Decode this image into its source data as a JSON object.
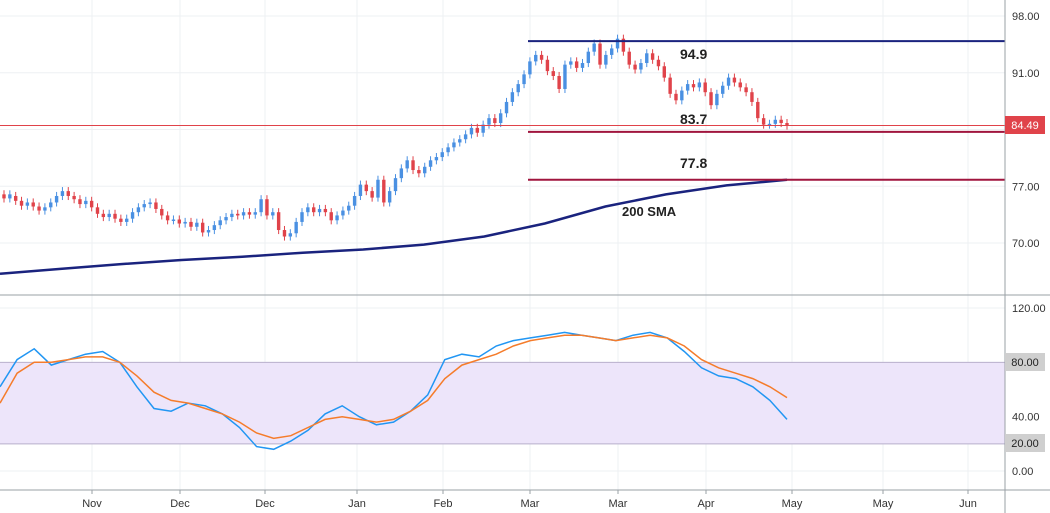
{
  "chart_data": [
    {
      "type": "candlestick",
      "ylim": [
        66,
        98.5
      ],
      "y_ticks": [
        "98.00",
        "91.00",
        "84.00",
        "77.00",
        "70.00"
      ],
      "last_price": "84.49",
      "colors": {
        "up": "#4a90e2",
        "down": "#e0434a",
        "sma": "#1a237e",
        "level_top": "#1a237e",
        "level_mid": "#a0153e",
        "price_line": "#e0434a"
      },
      "levels": [
        {
          "value": 94.9,
          "label": "94.9"
        },
        {
          "value": 83.7,
          "label": "83.7"
        },
        {
          "value": 77.8,
          "label": "77.8"
        }
      ],
      "sma_label": "200 SMA",
      "sma": [
        66.2,
        66.8,
        67.4,
        67.9,
        68.3,
        68.8,
        69.2,
        69.8,
        70.8,
        72.4,
        74.5,
        76.0,
        77.1,
        77.8
      ],
      "candles": [
        [
          76.0,
          75.5
        ],
        [
          75.5,
          76.0
        ],
        [
          75.8,
          75.2
        ],
        [
          75.2,
          74.6
        ],
        [
          74.6,
          75.0
        ],
        [
          75.0,
          74.5
        ],
        [
          74.5,
          74.0
        ],
        [
          74.0,
          74.4
        ],
        [
          74.4,
          75.0
        ],
        [
          75.0,
          75.8
        ],
        [
          75.8,
          76.4
        ],
        [
          76.4,
          75.8
        ],
        [
          75.8,
          75.4
        ],
        [
          75.4,
          74.8
        ],
        [
          74.8,
          75.2
        ],
        [
          75.2,
          74.4
        ],
        [
          74.4,
          73.6
        ],
        [
          73.6,
          73.2
        ],
        [
          73.2,
          73.6
        ],
        [
          73.6,
          73.0
        ],
        [
          73.0,
          72.6
        ],
        [
          72.6,
          73.0
        ],
        [
          73.0,
          73.8
        ],
        [
          73.8,
          74.4
        ],
        [
          74.4,
          74.8
        ],
        [
          74.8,
          75.0
        ],
        [
          75.0,
          74.2
        ],
        [
          74.2,
          73.4
        ],
        [
          73.4,
          72.8
        ],
        [
          72.8,
          72.9
        ],
        [
          72.9,
          72.4
        ],
        [
          72.4,
          72.6
        ],
        [
          72.6,
          72.0
        ],
        [
          72.0,
          72.5
        ],
        [
          72.5,
          71.3
        ],
        [
          71.3,
          71.6
        ],
        [
          71.6,
          72.2
        ],
        [
          72.2,
          72.8
        ],
        [
          72.8,
          73.2
        ],
        [
          73.2,
          73.6
        ],
        [
          73.6,
          73.4
        ],
        [
          73.4,
          73.8
        ],
        [
          73.8,
          73.5
        ],
        [
          73.5,
          73.8
        ],
        [
          73.8,
          75.4
        ],
        [
          75.4,
          73.4
        ],
        [
          73.4,
          73.8
        ],
        [
          73.8,
          71.6
        ],
        [
          71.6,
          70.8
        ],
        [
          70.8,
          71.2
        ],
        [
          71.2,
          72.6
        ],
        [
          72.6,
          73.8
        ],
        [
          73.8,
          74.4
        ],
        [
          74.4,
          73.8
        ],
        [
          73.8,
          74.2
        ],
        [
          74.2,
          73.8
        ],
        [
          73.8,
          72.8
        ],
        [
          72.8,
          73.4
        ],
        [
          73.4,
          74.0
        ],
        [
          74.0,
          74.6
        ],
        [
          74.6,
          75.8
        ],
        [
          75.8,
          77.2
        ],
        [
          77.2,
          76.4
        ],
        [
          76.4,
          75.6
        ],
        [
          75.6,
          77.8
        ],
        [
          77.8,
          75.0
        ],
        [
          75.0,
          76.4
        ],
        [
          76.4,
          78.0
        ],
        [
          78.0,
          79.2
        ],
        [
          79.2,
          80.2
        ],
        [
          80.2,
          79.0
        ],
        [
          79.0,
          78.6
        ],
        [
          78.6,
          79.4
        ],
        [
          79.4,
          80.2
        ],
        [
          80.2,
          80.6
        ],
        [
          80.6,
          81.2
        ],
        [
          81.2,
          81.8
        ],
        [
          81.8,
          82.4
        ],
        [
          82.4,
          82.8
        ],
        [
          82.8,
          83.4
        ],
        [
          83.4,
          84.2
        ],
        [
          84.2,
          83.6
        ],
        [
          83.6,
          84.6
        ],
        [
          84.6,
          85.4
        ],
        [
          85.4,
          84.8
        ],
        [
          84.8,
          86.0
        ],
        [
          86.0,
          87.4
        ],
        [
          87.4,
          88.6
        ],
        [
          88.6,
          89.6
        ],
        [
          89.6,
          90.8
        ],
        [
          90.8,
          92.4
        ],
        [
          92.4,
          93.2
        ],
        [
          93.2,
          92.6
        ],
        [
          92.6,
          91.2
        ],
        [
          91.2,
          90.6
        ],
        [
          90.6,
          89.0
        ],
        [
          89.0,
          92.0
        ],
        [
          92.0,
          92.4
        ],
        [
          92.4,
          91.6
        ],
        [
          91.6,
          92.2
        ],
        [
          92.2,
          93.6
        ],
        [
          93.6,
          94.6
        ],
        [
          94.6,
          92.0
        ],
        [
          92.0,
          93.2
        ],
        [
          93.2,
          94.0
        ],
        [
          94.0,
          95.2
        ],
        [
          95.2,
          93.6
        ],
        [
          93.6,
          92.0
        ],
        [
          92.0,
          91.4
        ],
        [
          91.4,
          92.2
        ],
        [
          92.2,
          93.4
        ],
        [
          93.4,
          92.6
        ],
        [
          92.6,
          91.8
        ],
        [
          91.8,
          90.4
        ],
        [
          90.4,
          88.4
        ],
        [
          88.4,
          87.6
        ],
        [
          87.6,
          88.8
        ],
        [
          88.8,
          89.6
        ],
        [
          89.6,
          89.2
        ],
        [
          89.2,
          89.8
        ],
        [
          89.8,
          88.6
        ],
        [
          88.6,
          87.0
        ],
        [
          87.0,
          88.4
        ],
        [
          88.4,
          89.4
        ],
        [
          89.4,
          90.4
        ],
        [
          90.4,
          89.8
        ],
        [
          89.8,
          89.2
        ],
        [
          89.2,
          88.6
        ],
        [
          88.6,
          87.4
        ],
        [
          87.4,
          85.4
        ],
        [
          85.4,
          84.6
        ],
        [
          84.6,
          84.7
        ],
        [
          84.7,
          85.2
        ],
        [
          85.2,
          84.8
        ],
        [
          84.8,
          84.49
        ]
      ]
    },
    {
      "type": "line",
      "ylim": [
        -10,
        130
      ],
      "y_ticks": [
        "120.00",
        "80.00",
        "40.00",
        "20.00",
        "0.00"
      ],
      "band": [
        20,
        80
      ],
      "colors": {
        "band": "#ede5fa",
        "k": "#2196f3",
        "d": "#f57c2b"
      },
      "series": [
        {
          "values": [
            62,
            82,
            90,
            78,
            82,
            86,
            88,
            80,
            62,
            46,
            44,
            50,
            48,
            42,
            32,
            18,
            16,
            22,
            30,
            42,
            48,
            40,
            34,
            36,
            44,
            56,
            82,
            86,
            84,
            92,
            96,
            98,
            100,
            102,
            100,
            98,
            96,
            100,
            102,
            98,
            88,
            76,
            70,
            68,
            62,
            52,
            38
          ]
        },
        {
          "values": [
            50,
            72,
            80,
            80,
            82,
            84,
            84,
            80,
            70,
            58,
            52,
            50,
            46,
            42,
            36,
            28,
            24,
            26,
            32,
            38,
            40,
            38,
            36,
            38,
            44,
            52,
            68,
            78,
            82,
            86,
            92,
            96,
            98,
            100,
            100,
            98,
            96,
            98,
            100,
            98,
            92,
            82,
            76,
            72,
            68,
            62,
            54
          ]
        }
      ]
    },
    {
      "type": "axis",
      "x_ticks": [
        "Nov",
        "Dec",
        "Dec",
        "Jan",
        "Feb",
        "Mar",
        "Mar",
        "Apr",
        "May",
        "May",
        "Jun"
      ]
    }
  ]
}
